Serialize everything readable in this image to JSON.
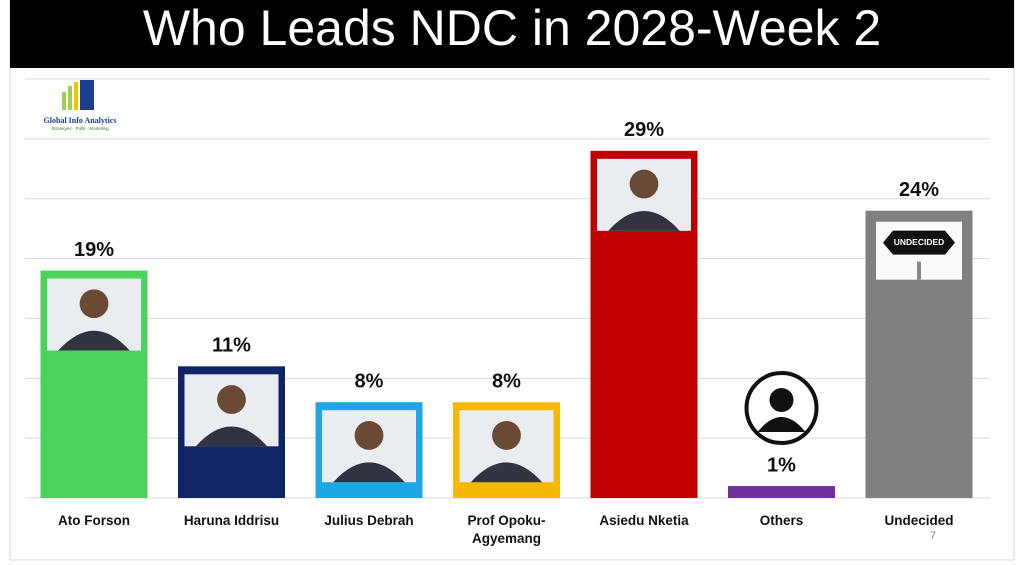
{
  "chart_data": {
    "type": "bar",
    "title": "Who Leads NDC in 2028-Week 2",
    "categories": [
      "Ato Forson",
      "Haruna Iddrisu",
      "Julius Debrah",
      "Prof Opoku-Agyemang",
      "Asiedu Nketia",
      "Others",
      "Undecided"
    ],
    "values": [
      19,
      11,
      8,
      8,
      29,
      1,
      24
    ],
    "value_labels": [
      "19%",
      "11%",
      "8%",
      "8%",
      "29%",
      "1%",
      "24%"
    ],
    "colors": [
      "#4cd35b",
      "#0f2565",
      "#1ea7e6",
      "#f6b800",
      "#c00000",
      "#7030a0",
      "#808080"
    ],
    "ylim": [
      0,
      35
    ],
    "yticks": [
      0,
      5,
      10,
      15,
      20,
      25,
      30,
      35
    ],
    "grid": true
  },
  "logo": {
    "name": "Global Info Analytics",
    "tagline": "Strategies · Polls · Modelling"
  },
  "sign_label": "UNDECIDED",
  "page_number": "7"
}
